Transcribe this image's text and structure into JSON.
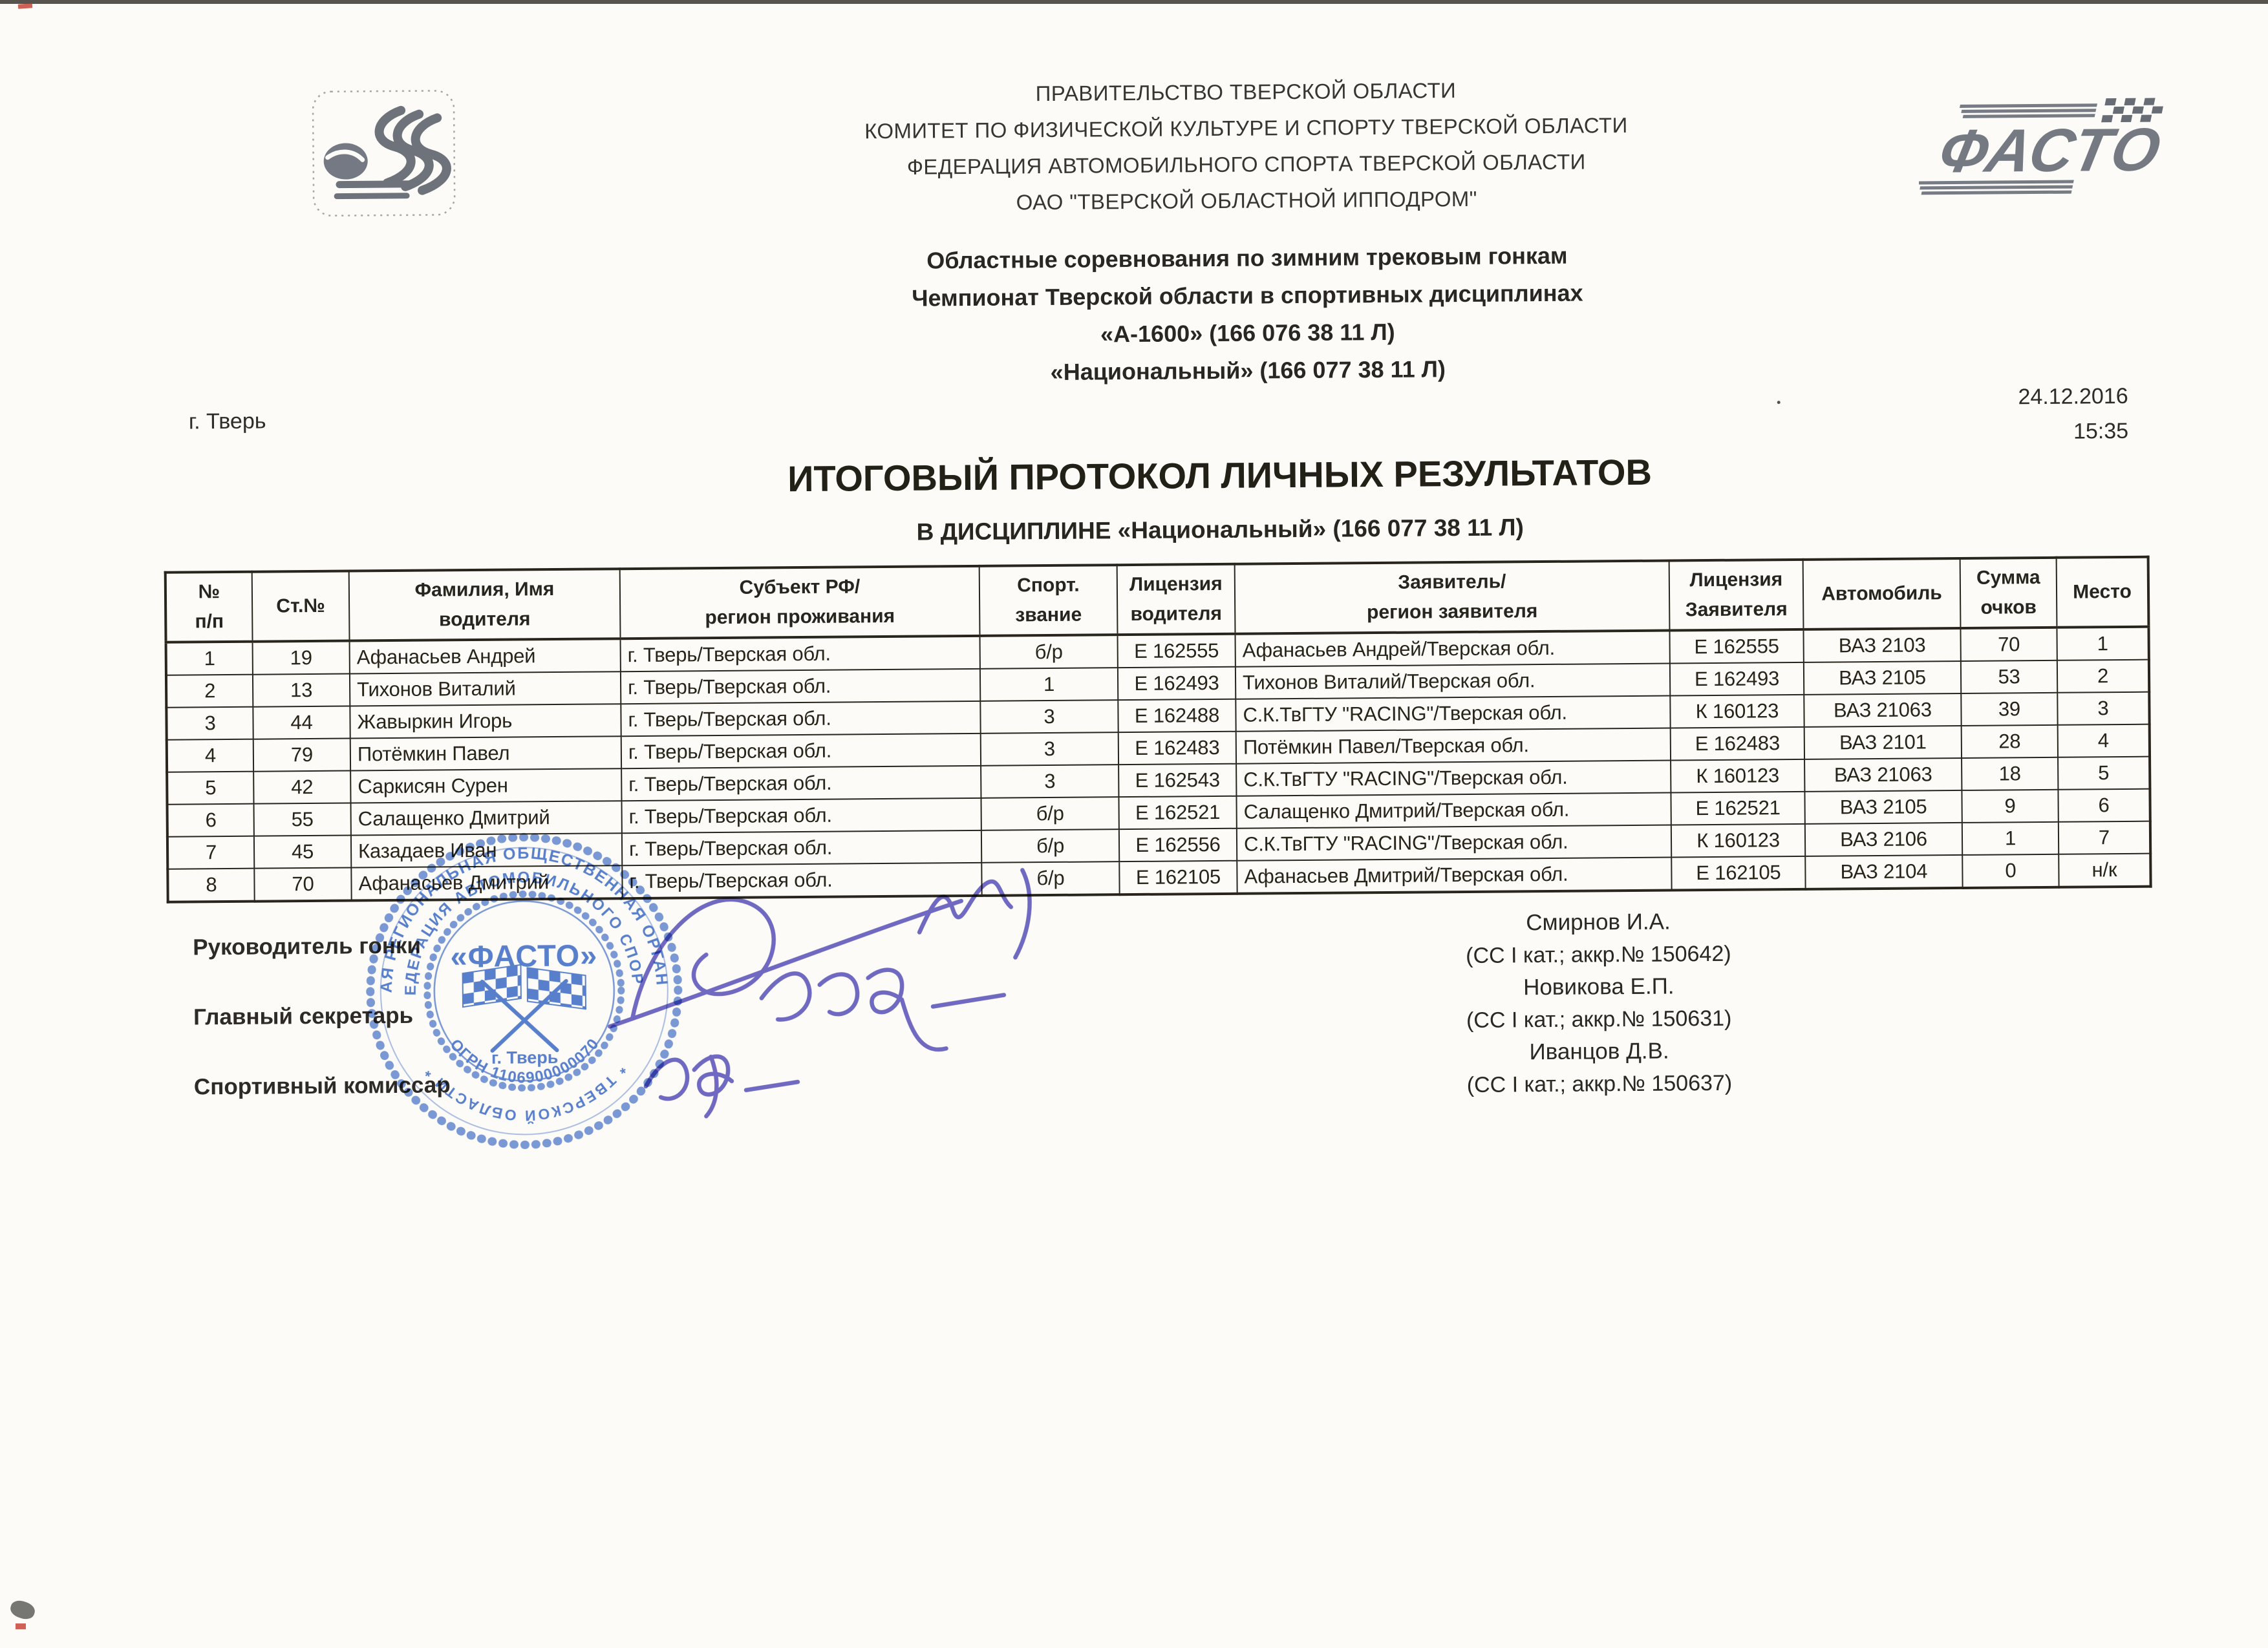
{
  "document": {
    "org_lines": [
      "ПРАВИТЕЛЬСТВО ТВЕРСКОЙ ОБЛАСТИ",
      "КОМИТЕТ ПО ФИЗИЧЕСКОЙ КУЛЬТУРЕ И СПОРТУ ТВЕРСКОЙ ОБЛАСТИ",
      "ФЕДЕРАЦИЯ АВТОМОБИЛЬНОГО СПОРТА ТВЕРСКОЙ ОБЛАСТИ",
      "ОАО \"ТВЕРСКОЙ ОБЛАСТНОЙ ИППОДРОМ\""
    ],
    "event_lines": [
      "Областные соревнования по зимним трековым гонкам",
      "Чемпионат Тверской области в спортивных дисциплинах",
      "«А-1600» (166 076 38 11 Л)",
      "«Национальный» (166 077 38 11 Л)"
    ],
    "city": "г. Тверь",
    "date": "24.12.2016",
    "time": "15:35",
    "title": "ИТОГОВЫЙ ПРОТОКОЛ ЛИЧНЫХ РЕЗУЛЬТАТОВ",
    "subtitle": "В ДИСЦИПЛИНЕ «Национальный» (166 077 38 11 Л)"
  },
  "table": {
    "headers": [
      [
        "№",
        "п/п"
      ],
      [
        "Ст.№"
      ],
      [
        "Фамилия,  Имя",
        "водителя"
      ],
      [
        "Субъект РФ/",
        "регион проживания"
      ],
      [
        "Спорт.",
        "звание"
      ],
      [
        "Лицензия",
        "водителя"
      ],
      [
        "Заявитель/",
        "регион заявителя"
      ],
      [
        "Лицензия",
        "Заявителя"
      ],
      [
        "Автомобиль"
      ],
      [
        "Сумма",
        "очков"
      ],
      [
        "Место"
      ]
    ],
    "rows": [
      [
        "1",
        "19",
        "Афанасьев Андрей",
        "г. Тверь/Тверская обл.",
        "б/р",
        "Е 162555",
        "Афанасьев Андрей/Тверская обл.",
        "Е 162555",
        "ВАЗ 2103",
        "70",
        "1"
      ],
      [
        "2",
        "13",
        "Тихонов Виталий",
        "г. Тверь/Тверская обл.",
        "1",
        "Е 162493",
        "Тихонов Виталий/Тверская обл.",
        "Е 162493",
        "ВАЗ 2105",
        "53",
        "2"
      ],
      [
        "3",
        "44",
        "Жавыркин Игорь",
        "г. Тверь/Тверская обл.",
        "3",
        "Е 162488",
        "С.К.ТвГТУ \"RACING\"/Тверская обл.",
        "К 160123",
        "ВАЗ 21063",
        "39",
        "3"
      ],
      [
        "4",
        "79",
        "Потёмкин Павел",
        "г. Тверь/Тверская обл.",
        "3",
        "Е 162483",
        "Потёмкин Павел/Тверская обл.",
        "Е 162483",
        "ВАЗ 2101",
        "28",
        "4"
      ],
      [
        "5",
        "42",
        "Саркисян Сурен",
        "г. Тверь/Тверская обл.",
        "3",
        "Е 162543",
        "С.К.ТвГТУ \"RACING\"/Тверская обл.",
        "К 160123",
        "ВАЗ 21063",
        "18",
        "5"
      ],
      [
        "6",
        "55",
        "Салащенко Дмитрий",
        "г. Тверь/Тверская обл.",
        "б/р",
        "Е 162521",
        "Салащенко Дмитрий/Тверская обл.",
        "Е 162521",
        "ВАЗ 2105",
        "9",
        "6"
      ],
      [
        "7",
        "45",
        "Казадаев Иван",
        "г. Тверь/Тверская обл.",
        "б/р",
        "Е 162556",
        "С.К.ТвГТУ \"RACING\"/Тверская обл.",
        "К 160123",
        "ВАЗ 2106",
        "1",
        "7"
      ],
      [
        "8",
        "70",
        "Афанасьев Дмитрий",
        "г. Тверь/Тверская обл.",
        "б/р",
        "Е 162105",
        "Афанасьев Дмитрий/Тверская обл.",
        "Е 162105",
        "ВАЗ 2104",
        "0",
        "н/к"
      ]
    ]
  },
  "signatures": {
    "roles": [
      "Руководитель гонки",
      "Главный секретарь",
      "Спортивный комиссар"
    ],
    "officials": [
      {
        "name": "Смирнов И.А.",
        "credentials": "(СС I кат.; аккр.№ 150642)"
      },
      {
        "name": "Новикова Е.П.",
        "credentials": "(СС I кат.; аккр.№ 150631)"
      },
      {
        "name": "Иванцов Д.В.",
        "credentials": "(СС I кат.; аккр.№ 150637)"
      }
    ]
  },
  "stamp": {
    "ring_outer": "ТВЕРСКАЯ РЕГИОНАЛЬНАЯ ОБЩЕСТВЕННАЯ ОРГАНИЗАЦИЯ",
    "ring_inner_top": "ФЕДЕРАЦИЯ АВТОМОБИЛЬНОГО СПОРТА",
    "ring_inner_bottom": "* ТВЕРСКОЙ ОБЛАСТИ *",
    "ogrn": "ОГРН 1106900000070",
    "name": "«ФАСТО»",
    "city": "г. Тверь",
    "color": "#4a74c8"
  },
  "logos": {
    "right_text": "ФАСТО"
  },
  "colors": {
    "stamp_blue": "#4a74c8",
    "ink_blue": "#4f46b5",
    "text": "#2e2c28",
    "paper": "#fcfbf8",
    "accent_red": "#c43b2e"
  }
}
